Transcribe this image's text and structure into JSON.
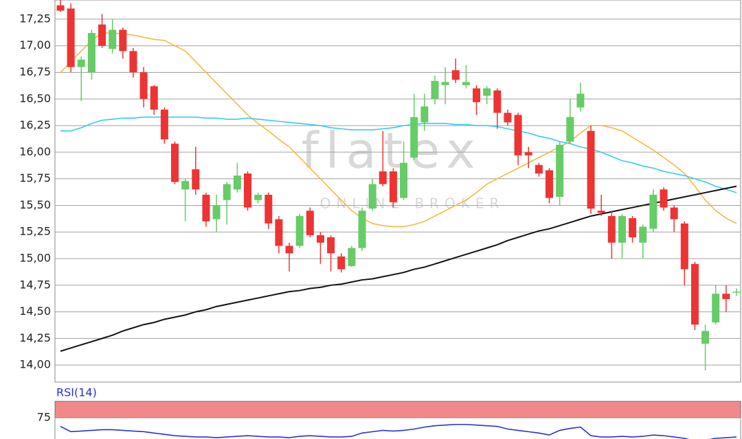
{
  "chart_data": [
    {
      "type": "candlestick",
      "ylim": [
        13.84,
        17.43
      ],
      "yticks": [
        {
          "value": 14,
          "label": "14,00"
        },
        {
          "value": 14.25,
          "label": "14,25"
        },
        {
          "value": 14.5,
          "label": "14,50"
        },
        {
          "value": 14.75,
          "label": "14,75"
        },
        {
          "value": 15,
          "label": "15,00"
        },
        {
          "value": 15.25,
          "label": "15,25"
        },
        {
          "value": 15.5,
          "label": "15,50"
        },
        {
          "value": 15.75,
          "label": "15,75"
        },
        {
          "value": 16,
          "label": "16,00"
        },
        {
          "value": 16.25,
          "label": "16,25"
        },
        {
          "value": 16.5,
          "label": "16,50"
        },
        {
          "value": 16.75,
          "label": "16,75"
        },
        {
          "value": 17,
          "label": "17,00"
        },
        {
          "value": 17.25,
          "label": "17,25"
        }
      ],
      "grid": true,
      "up_color": "#66cc66",
      "down_color": "#ee3333",
      "open": [
        17.38,
        17.35,
        16.8,
        16.75,
        17.2,
        16.97,
        17.15,
        16.95,
        16.75,
        16.62,
        16.4,
        16.08,
        15.65,
        15.84,
        15.6,
        15.37,
        15.55,
        15.65,
        15.8,
        15.55,
        15.6,
        15.37,
        15.12,
        15.12,
        15.45,
        15.22,
        15.2,
        15.02,
        14.93,
        15.1,
        15.47,
        15.82,
        15.82,
        15.57,
        15.95,
        16.28,
        16.5,
        16.63,
        16.77,
        16.63,
        16.6,
        16.53,
        16.58,
        16.37,
        16.35,
        16.0,
        15.88,
        15.83,
        15.58,
        16.1,
        16.42,
        16.2,
        15.45,
        15.4,
        15.15,
        15.38,
        15.15,
        15.28,
        15.65,
        15.48,
        15.33,
        14.95,
        14.2,
        14.4,
        14.67,
        14.68
      ],
      "high": [
        17.43,
        17.4,
        16.9,
        17.15,
        17.3,
        17.25,
        17.17,
        16.98,
        16.8,
        16.63,
        16.42,
        16.1,
        15.75,
        16.05,
        15.62,
        15.6,
        15.72,
        15.9,
        15.82,
        15.62,
        15.62,
        15.4,
        15.15,
        15.42,
        15.48,
        15.25,
        15.22,
        15.05,
        15.12,
        15.48,
        15.75,
        16.2,
        15.85,
        16.1,
        16.55,
        16.55,
        16.72,
        16.8,
        16.88,
        16.82,
        16.63,
        16.62,
        16.6,
        16.4,
        16.37,
        16.05,
        15.9,
        15.85,
        16.1,
        16.5,
        16.65,
        16.25,
        15.6,
        15.45,
        15.42,
        15.4,
        15.32,
        15.65,
        15.67,
        15.5,
        15.35,
        14.97,
        14.38,
        14.75,
        14.75,
        14.72
      ],
      "low": [
        17.32,
        16.75,
        16.48,
        16.68,
        16.98,
        16.93,
        16.88,
        16.7,
        16.42,
        16.35,
        16.08,
        15.7,
        15.35,
        15.6,
        15.3,
        15.25,
        15.32,
        15.62,
        15.45,
        15.52,
        15.28,
        15.05,
        14.88,
        15.1,
        15.2,
        14.95,
        14.88,
        14.87,
        14.92,
        15.07,
        15.45,
        15.68,
        15.48,
        15.55,
        15.93,
        16.2,
        16.45,
        16.45,
        16.65,
        16.6,
        16.35,
        16.45,
        16.22,
        16.25,
        15.88,
        15.85,
        15.77,
        15.52,
        15.5,
        16.08,
        16.38,
        15.42,
        15.4,
        15.0,
        15.0,
        15.15,
        15.0,
        15.25,
        15.45,
        15.25,
        14.75,
        14.33,
        13.95,
        14.38,
        14.5,
        14.65
      ],
      "close": [
        17.33,
        16.8,
        16.87,
        17.12,
        17.0,
        17.15,
        16.95,
        16.75,
        16.5,
        16.4,
        16.12,
        15.72,
        15.73,
        15.65,
        15.35,
        15.5,
        15.7,
        15.78,
        15.48,
        15.6,
        15.33,
        15.12,
        15.05,
        15.4,
        15.22,
        15.15,
        15.05,
        14.9,
        15.1,
        15.45,
        15.7,
        15.7,
        15.53,
        15.9,
        16.33,
        16.43,
        16.67,
        16.66,
        16.68,
        16.66,
        16.47,
        16.6,
        16.37,
        16.28,
        15.97,
        15.97,
        15.8,
        15.57,
        16.07,
        16.33,
        16.55,
        15.47,
        15.43,
        15.15,
        15.4,
        15.2,
        15.3,
        15.6,
        15.48,
        15.37,
        14.9,
        14.38,
        14.32,
        14.67,
        14.62,
        14.69
      ],
      "overlays": [
        {
          "color": "#f5b941",
          "values": [
            16.75,
            16.85,
            16.95,
            17.05,
            17.12,
            17.12,
            17.11,
            17.1,
            17.08,
            17.06,
            17.05,
            17.0,
            16.95,
            16.85,
            16.75,
            16.65,
            16.55,
            16.45,
            16.35,
            16.27,
            16.2,
            16.12,
            16.05,
            15.95,
            15.85,
            15.75,
            15.65,
            15.55,
            15.45,
            15.38,
            15.33,
            15.31,
            15.3,
            15.3,
            15.32,
            15.35,
            15.4,
            15.45,
            15.5,
            15.55,
            15.62,
            15.7,
            15.75,
            15.8,
            15.85,
            15.9,
            15.95,
            16.0,
            16.05,
            16.1,
            16.18,
            16.25,
            16.25,
            16.23,
            16.2,
            16.14,
            16.08,
            16.02,
            15.95,
            15.88,
            15.8,
            15.68,
            15.55,
            15.45,
            15.38,
            15.33
          ]
        },
        {
          "color": "#33ccee",
          "values": [
            16.2,
            16.2,
            16.23,
            16.27,
            16.3,
            16.31,
            16.32,
            16.32,
            16.33,
            16.33,
            16.33,
            16.33,
            16.33,
            16.33,
            16.32,
            16.32,
            16.31,
            16.31,
            16.32,
            16.31,
            16.3,
            16.29,
            16.28,
            16.27,
            16.26,
            16.25,
            16.23,
            16.22,
            16.21,
            16.21,
            16.21,
            16.22,
            16.23,
            16.25,
            16.26,
            16.27,
            16.27,
            16.27,
            16.26,
            16.26,
            16.25,
            16.25,
            16.24,
            16.22,
            16.2,
            16.18,
            16.15,
            16.13,
            16.1,
            16.08,
            16.05,
            16.03,
            16.0,
            15.96,
            15.92,
            15.9,
            15.87,
            15.85,
            15.82,
            15.8,
            15.78,
            15.75,
            15.72,
            15.68,
            15.65,
            15.62
          ]
        },
        {
          "color": "#111111",
          "values": [
            14.13,
            14.16,
            14.19,
            14.22,
            14.25,
            14.28,
            14.32,
            14.35,
            14.38,
            14.4,
            14.43,
            14.45,
            14.47,
            14.5,
            14.52,
            14.55,
            14.57,
            14.59,
            14.61,
            14.63,
            14.65,
            14.67,
            14.69,
            14.7,
            14.72,
            14.73,
            14.75,
            14.76,
            14.78,
            14.8,
            14.81,
            14.83,
            14.85,
            14.87,
            14.9,
            14.92,
            14.95,
            14.98,
            15.01,
            15.04,
            15.07,
            15.1,
            15.13,
            15.17,
            15.2,
            15.23,
            15.26,
            15.28,
            15.31,
            15.34,
            15.37,
            15.4,
            15.42,
            15.44,
            15.46,
            15.48,
            15.5,
            15.52,
            15.54,
            15.56,
            15.58,
            15.6,
            15.62,
            15.64,
            15.66,
            15.68
          ]
        }
      ],
      "watermark": {
        "brand": "flatex",
        "tagline": "ONLINE BROKER"
      }
    },
    {
      "type": "line",
      "title": "RSI(14)",
      "ylim": [
        44,
        100
      ],
      "yticks": [
        75
      ],
      "zone": [
        75,
        100
      ],
      "zone_color": "#f08a8a",
      "color": "#2233dd",
      "values": [
        62,
        54,
        55,
        56,
        57,
        57,
        56,
        55,
        54,
        52,
        50,
        48,
        47,
        46,
        46,
        45,
        46,
        47,
        48,
        47,
        46,
        46,
        45,
        47,
        48,
        47,
        46,
        46,
        47,
        52,
        54,
        56,
        55,
        56,
        58,
        61,
        63,
        64,
        65,
        65,
        64,
        63,
        62,
        58,
        56,
        54,
        52,
        49,
        56,
        59,
        61,
        48,
        46,
        46,
        47,
        46,
        47,
        49,
        48,
        46,
        44,
        40,
        41,
        44,
        45,
        46
      ]
    }
  ]
}
